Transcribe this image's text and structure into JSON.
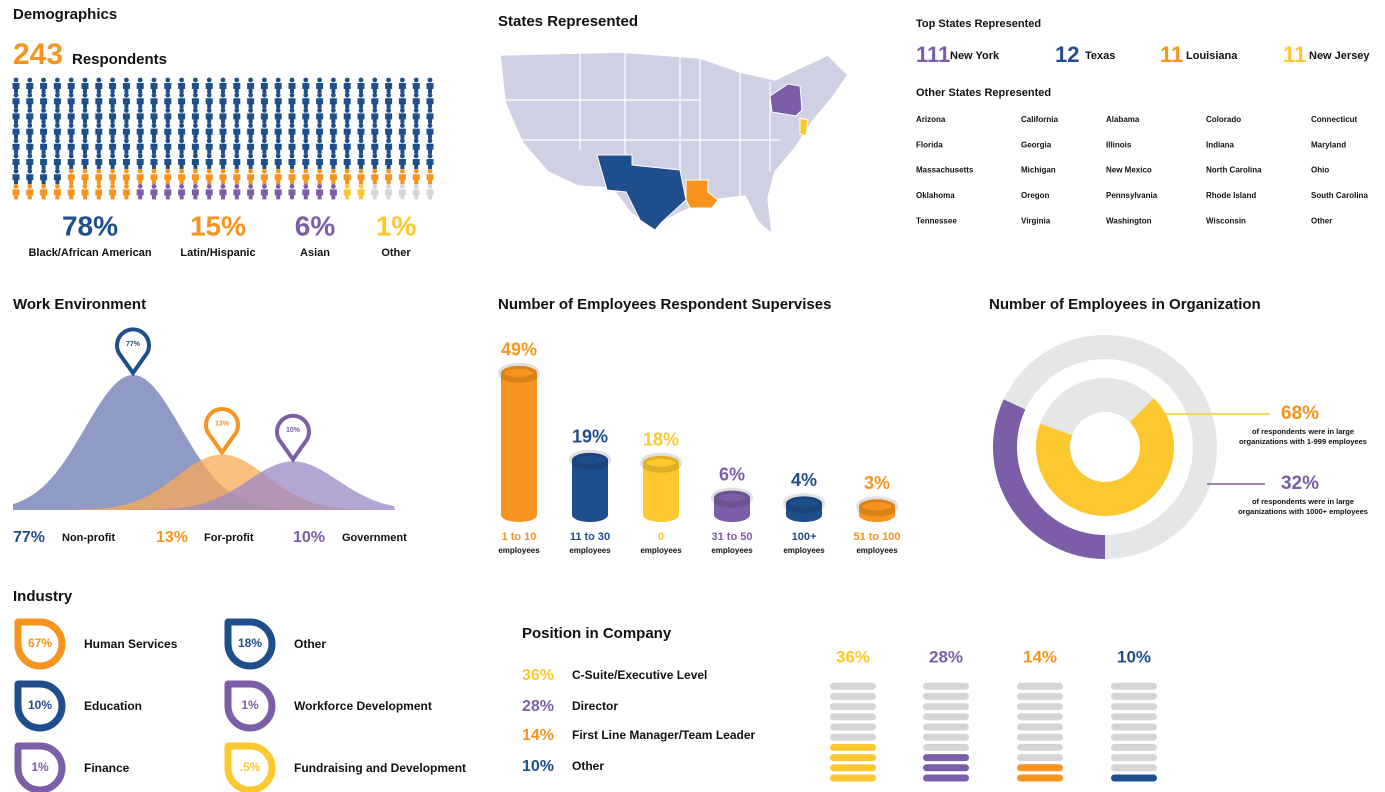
{
  "demographics": {
    "title": "Demographics",
    "total": 243,
    "total_label": "Respondents",
    "groups": [
      {
        "value": 78,
        "label": "78%",
        "name": "Black/African American",
        "color": "#1f4e8c"
      },
      {
        "value": 15,
        "label": "15%",
        "name": "Latin/Hispanic",
        "color": "#f7941d"
      },
      {
        "value": 6,
        "label": "6%",
        "name": "Asian",
        "color": "#7b5ea7"
      },
      {
        "value": 1,
        "label": "1%",
        "name": "Other",
        "color": "#fdc82f"
      }
    ]
  },
  "states": {
    "title": "States Represented",
    "top_title": "Top States Represented",
    "top": [
      {
        "count": 111,
        "name": "New York",
        "color": "#7b5ea7"
      },
      {
        "count": 12,
        "name": "Texas",
        "color": "#1f4e8c"
      },
      {
        "count": 11,
        "name": "Louisiana",
        "color": "#f7941d"
      },
      {
        "count": 11,
        "name": "New Jersey",
        "color": "#fdc82f"
      }
    ],
    "other_title": "Other States Represented",
    "other": [
      "Arizona",
      "California",
      "Alabama",
      "Colorado",
      "Connecticut",
      "Florida",
      "Georgia",
      "Illinois",
      "Indiana",
      "Maryland",
      "Massachusetts",
      "Michigan",
      "New Mexico",
      "North Carolina",
      "Ohio",
      "Oklahoma",
      "Oregon",
      "Pennsylvania",
      "Rhode Island",
      "South Carolina",
      "Tennessee",
      "Virginia",
      "Washington",
      "Wisconsin",
      "Other"
    ]
  },
  "work": {
    "title": "Work Environment",
    "items": [
      {
        "value": 77,
        "label": "77%",
        "name": "Non-profit",
        "color": "#1f4e8c"
      },
      {
        "value": 13,
        "label": "13%",
        "name": "For-profit",
        "color": "#f7941d"
      },
      {
        "value": 10,
        "label": "10%",
        "name": "Government",
        "color": "#7b5ea7"
      }
    ]
  },
  "supervises": {
    "title": "Number of Employees Respondent Supervises",
    "unit": "employees",
    "items": [
      {
        "value": 49,
        "label": "49%",
        "name": "1 to 10",
        "color": "#f7941d"
      },
      {
        "value": 19,
        "label": "19%",
        "name": "11 to 30",
        "color": "#1f4e8c"
      },
      {
        "value": 18,
        "label": "18%",
        "name": "0",
        "color": "#fdc82f"
      },
      {
        "value": 6,
        "label": "6%",
        "name": "31 to 50",
        "color": "#7b5ea7"
      },
      {
        "value": 4,
        "label": "4%",
        "name": "100+",
        "color": "#1f4e8c"
      },
      {
        "value": 3,
        "label": "3%",
        "name": "51 to 100",
        "color": "#f7941d"
      }
    ]
  },
  "organization": {
    "title": "Number of Employees in Organization",
    "items": [
      {
        "value": 68,
        "label": "68%",
        "note": [
          "of respondents were in large",
          "organizations with 1-999 employees"
        ],
        "color": "#fdc82f",
        "label_color": "#f7941d"
      },
      {
        "value": 32,
        "label": "32%",
        "note": [
          "of respondents were in large",
          "organizations with 1000+ employees"
        ],
        "color": "#7b5ea7",
        "label_color": "#7b5ea7"
      }
    ]
  },
  "industry": {
    "title": "Industry",
    "items": [
      {
        "value": 67,
        "label": "67%",
        "name": "Human Services",
        "color": "#f7941d"
      },
      {
        "value": 18,
        "label": "18%",
        "name": "Other",
        "color": "#1f4e8c"
      },
      {
        "value": 10,
        "label": "10%",
        "name": "Education",
        "color": "#1f4e8c"
      },
      {
        "value": 1,
        "label": "1%",
        "name": "Workforce Development",
        "color": "#7b5ea7"
      },
      {
        "value": 1,
        "label": "1%",
        "name": "Finance",
        "color": "#7b5ea7"
      },
      {
        "value": 0.5,
        "label": ".5%",
        "name": "Fundraising and Development",
        "color": "#fdc82f"
      }
    ]
  },
  "position": {
    "title": "Position in Company",
    "items": [
      {
        "value": 36,
        "label": "36%",
        "name": "C-Suite/Executive Level",
        "color": "#fdc82f"
      },
      {
        "value": 28,
        "label": "28%",
        "name": "Director",
        "color": "#7b5ea7"
      },
      {
        "value": 14,
        "label": "14%",
        "name": "First Line Manager/Team Leader",
        "color": "#f7941d"
      },
      {
        "value": 10,
        "label": "10%",
        "name": "Other",
        "color": "#1f4e8c"
      }
    ]
  }
}
